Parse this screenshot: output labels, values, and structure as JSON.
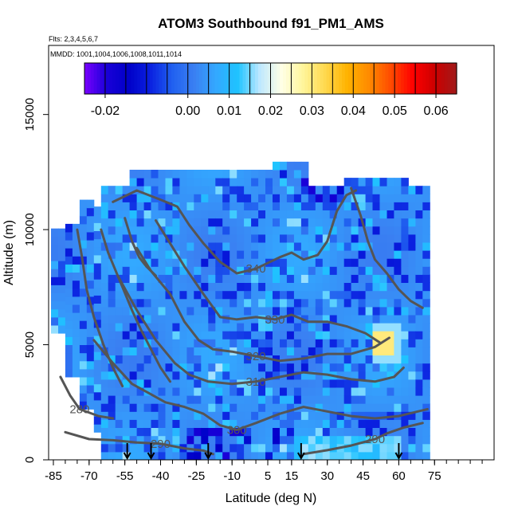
{
  "chart_data": {
    "type": "heatmap",
    "title": "ATOM3 Southbound f91_PM1_AMS",
    "subtitle_flights": "Flts: 2,3,4,5,6,7",
    "subtitle_dates": "MMDD: 1001,1004,1006,1008,1011,1014",
    "xlabel": "Latitude (deg N)",
    "ylabel": "Altitude (m)",
    "xlim": [
      -87,
      100
    ],
    "ylim": [
      0,
      18000
    ],
    "x_ticks": [
      -85,
      -70,
      -55,
      -40,
      -25,
      -10,
      5,
      15,
      30,
      45,
      60,
      75
    ],
    "x_tick_labels": [
      "-85",
      "-70",
      "-55",
      "-40",
      "-25",
      "-10",
      "5",
      "15",
      "30",
      "45",
      "60",
      "75"
    ],
    "y_ticks": [
      0,
      5000,
      10000,
      15000
    ],
    "y_tick_labels": [
      "0",
      "5000",
      "10000",
      "15000"
    ],
    "colorbar": {
      "min": -0.025,
      "max": 0.065,
      "ticks": [
        -0.02,
        0.0,
        0.01,
        0.02,
        0.03,
        0.04,
        0.05,
        0.06
      ],
      "tick_labels": [
        "-0.02",
        "0.00",
        "0.01",
        "0.02",
        "0.03",
        "0.04",
        "0.05",
        "0.06"
      ],
      "colors": [
        "#7a00ff",
        "#1a00d8",
        "#0000c8",
        "#0a20e0",
        "#2060f0",
        "#3a7ff2",
        "#33a8ff",
        "#1ec3ff",
        "#bde8ff",
        "#ffffe6",
        "#fff59a",
        "#ffd84d",
        "#ffb300",
        "#ff8a00",
        "#ff4a00",
        "#ff0000",
        "#cc0000",
        "#a01a1a"
      ]
    },
    "theta_contours": [
      {
        "label": "280",
        "points": [
          [
            -82,
            3600
          ],
          [
            -78,
            2800
          ],
          [
            -74,
            2200
          ],
          [
            -66,
            1900
          ],
          [
            -60,
            1800
          ]
        ]
      },
      {
        "label": "290",
        "points": [
          [
            -80,
            1200
          ],
          [
            -70,
            900
          ],
          [
            -60,
            850
          ],
          [
            -50,
            750
          ],
          [
            -40,
            700
          ],
          [
            -30,
            500
          ],
          [
            -22,
            400
          ],
          [
            -18,
            250
          ]
        ]
      },
      {
        "label": "290",
        "points": [
          [
            20,
            250
          ],
          [
            30,
            420
          ],
          [
            40,
            620
          ],
          [
            50,
            900
          ],
          [
            55,
            1150
          ],
          [
            62,
            1400
          ],
          [
            70,
            1600
          ]
        ]
      },
      {
        "label": "300",
        "points": [
          [
            -68,
            5200
          ],
          [
            -60,
            4200
          ],
          [
            -52,
            3300
          ],
          [
            -45,
            2900
          ],
          [
            -38,
            2500
          ],
          [
            -30,
            2300
          ],
          [
            -22,
            2000
          ],
          [
            -15,
            1500
          ],
          [
            -8,
            1300
          ],
          [
            0,
            1600
          ],
          [
            10,
            2000
          ],
          [
            20,
            2300
          ],
          [
            30,
            2100
          ],
          [
            40,
            1900
          ],
          [
            50,
            1800
          ],
          [
            60,
            1900
          ],
          [
            72,
            2200
          ]
        ]
      },
      {
        "label": "310",
        "points": [
          [
            -58,
            8000
          ],
          [
            -50,
            6500
          ],
          [
            -42,
            5200
          ],
          [
            -34,
            4200
          ],
          [
            -28,
            3700
          ],
          [
            -20,
            3400
          ],
          [
            -10,
            3300
          ],
          [
            0,
            3400
          ],
          [
            10,
            3600
          ],
          [
            20,
            3800
          ],
          [
            30,
            3700
          ],
          [
            40,
            3500
          ],
          [
            50,
            3400
          ],
          [
            58,
            3600
          ],
          [
            62,
            4000
          ]
        ]
      },
      {
        "label": "320",
        "points": [
          [
            -50,
            9200
          ],
          [
            -44,
            8200
          ],
          [
            -36,
            7200
          ],
          [
            -30,
            6000
          ],
          [
            -24,
            5200
          ],
          [
            -18,
            4800
          ],
          [
            -10,
            4700
          ],
          [
            0,
            4500
          ],
          [
            10,
            4300
          ],
          [
            20,
            4400
          ],
          [
            30,
            4600
          ],
          [
            40,
            4600
          ],
          [
            50,
            4900
          ],
          [
            56,
            5300
          ]
        ]
      },
      {
        "label": "330",
        "points": [
          [
            -42,
            10400
          ],
          [
            -36,
            9400
          ],
          [
            -30,
            8400
          ],
          [
            -22,
            7200
          ],
          [
            -15,
            6200
          ],
          [
            -8,
            6100
          ],
          [
            0,
            6200
          ],
          [
            8,
            6100
          ],
          [
            15,
            6300
          ],
          [
            22,
            6000
          ],
          [
            30,
            6000
          ],
          [
            38,
            5800
          ],
          [
            46,
            5500
          ],
          [
            52,
            5100
          ]
        ]
      },
      {
        "label": "340",
        "points": [
          [
            -60,
            11200
          ],
          [
            -50,
            11700
          ],
          [
            -40,
            11300
          ],
          [
            -33,
            11000
          ],
          [
            -28,
            10200
          ],
          [
            -22,
            9400
          ],
          [
            -15,
            8600
          ],
          [
            -8,
            8100
          ],
          [
            0,
            8300
          ],
          [
            10,
            8800
          ],
          [
            15,
            9000
          ],
          [
            20,
            8700
          ],
          [
            26,
            8900
          ],
          [
            30,
            9500
          ],
          [
            34,
            10800
          ],
          [
            38,
            11500
          ],
          [
            42,
            11700
          ]
        ]
      },
      {
        "label": "",
        "points": [
          [
            -65,
            10000
          ],
          [
            -62,
            9000
          ],
          [
            -60,
            8500
          ],
          [
            -56,
            7500
          ],
          [
            -52,
            6500
          ],
          [
            -48,
            5600
          ],
          [
            -44,
            4800
          ],
          [
            -40,
            4000
          ],
          [
            -36,
            3400
          ]
        ]
      },
      {
        "label": "",
        "points": [
          [
            -75,
            10000
          ],
          [
            -73,
            8800
          ],
          [
            -71,
            7400
          ],
          [
            -68,
            6200
          ],
          [
            -64,
            5000
          ],
          [
            -60,
            4000
          ],
          [
            -56,
            3200
          ]
        ]
      },
      {
        "label": "",
        "points": [
          [
            40,
            11800
          ],
          [
            44,
            10600
          ],
          [
            47,
            9500
          ],
          [
            50,
            8700
          ],
          [
            55,
            8100
          ],
          [
            60,
            7400
          ],
          [
            65,
            6900
          ],
          [
            70,
            6600
          ]
        ]
      },
      {
        "label": "",
        "points": [
          [
            -55,
            10500
          ],
          [
            -52,
            9500
          ],
          [
            -49,
            8800
          ],
          [
            -46,
            8400
          ],
          [
            -42,
            8000
          ]
        ]
      }
    ],
    "flight_arrows_lat": [
      -54,
      -44,
      -20,
      19,
      60
    ]
  }
}
